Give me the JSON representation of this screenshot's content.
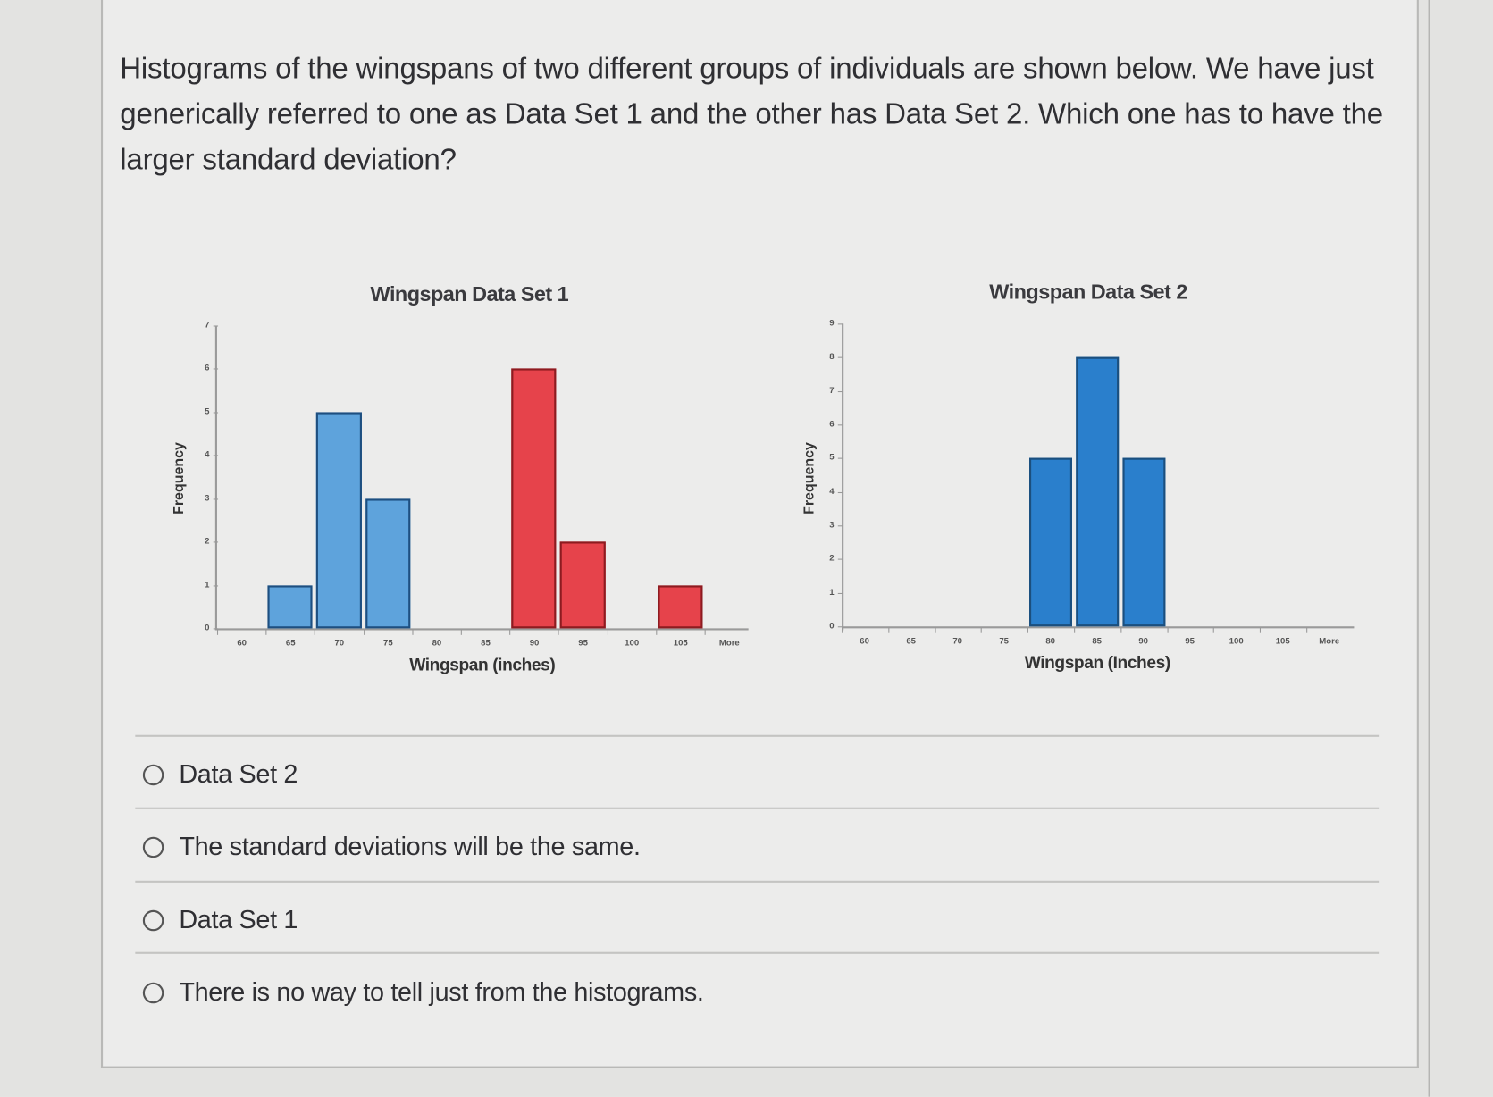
{
  "question": {
    "text": "Histograms of the wingspans of two different groups of individuals are shown below.  We have just generically referred to one as Data Set 1 and the other has Data Set 2.  Which one has to have the larger standard deviation?"
  },
  "chart_data": [
    {
      "type": "bar",
      "title": "Wingspan Data Set 1",
      "xlabel": "Wingspan (inches)",
      "ylabel": "Frequency",
      "categories": [
        "60",
        "65",
        "70",
        "75",
        "80",
        "85",
        "90",
        "95",
        "100",
        "105",
        "More"
      ],
      "values": [
        0,
        1,
        5,
        3,
        0,
        0,
        6,
        2,
        0,
        1,
        0
      ],
      "bar_colors": [
        "#5ea3dc",
        "#5ea3dc",
        "#5ea3dc",
        "#5ea3dc",
        "#5ea3dc",
        "#5ea3dc",
        "#e6434b",
        "#e6434b",
        "#e6434b",
        "#e6434b",
        "#e6434b"
      ],
      "yticks": [
        "0",
        "1",
        "2",
        "3",
        "4",
        "5",
        "6",
        "7"
      ],
      "ylim": [
        0,
        7
      ],
      "grid": false,
      "legend": null
    },
    {
      "type": "bar",
      "title": "Wingspan Data Set 2",
      "xlabel": "Wingspan (Inches)",
      "ylabel": "Frequency",
      "categories": [
        "60",
        "65",
        "70",
        "75",
        "80",
        "85",
        "90",
        "95",
        "100",
        "105",
        "More"
      ],
      "values": [
        0,
        0,
        0,
        0,
        5,
        8,
        5,
        0,
        0,
        0,
        0
      ],
      "bar_colors": [
        "#2a7fcc"
      ],
      "yticks": [
        "0",
        "1",
        "2",
        "3",
        "4",
        "5",
        "6",
        "7",
        "8",
        "9"
      ],
      "ylim": [
        0,
        9
      ],
      "grid": false,
      "legend": null
    }
  ],
  "charts": {
    "c1": {
      "title": "Wingspan Data Set 1",
      "xlabel": "Wingspan (inches)",
      "ylabel": "Frequency",
      "xticks": [
        "60",
        "65",
        "70",
        "75",
        "80",
        "85",
        "90",
        "95",
        "100",
        "105",
        "More"
      ],
      "yticks": [
        "0",
        "1",
        "2",
        "3",
        "4",
        "5",
        "6",
        "7"
      ]
    },
    "c2": {
      "title": "Wingspan Data Set 2",
      "xlabel": "Wingspan (Inches)",
      "ylabel": "Frequency",
      "xticks": [
        "60",
        "65",
        "70",
        "75",
        "80",
        "85",
        "90",
        "95",
        "100",
        "105",
        "More"
      ],
      "yticks": [
        "0",
        "1",
        "2",
        "3",
        "4",
        "5",
        "6",
        "7",
        "8",
        "9"
      ]
    }
  },
  "options": [
    {
      "label": "Data Set 2",
      "selected": false
    },
    {
      "label": "The standard deviations will be the same.",
      "selected": false
    },
    {
      "label": "Data Set 1",
      "selected": false
    },
    {
      "label": "There is no way to tell just from the histograms.",
      "selected": false
    }
  ]
}
